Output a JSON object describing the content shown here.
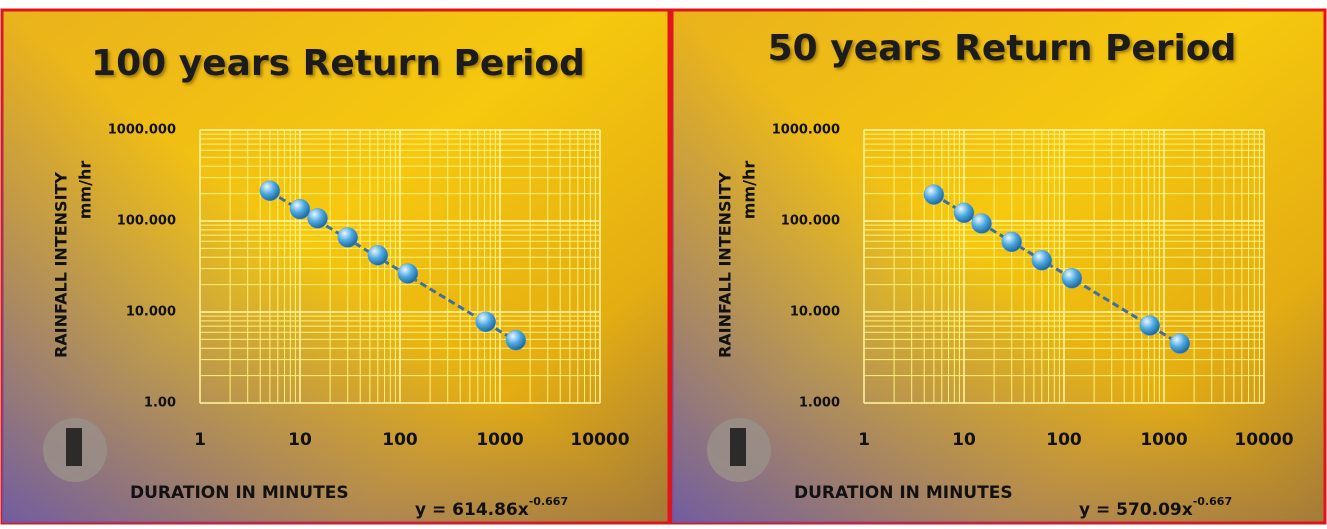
{
  "chart_data": [
    {
      "type": "scatter",
      "title": "100 years Return Period",
      "x_label": "DURATION IN MINUTES",
      "y_label": "RAINFALL INTENSITY",
      "y_label_unit": "mm/hr",
      "x": [
        5,
        10,
        15,
        30,
        60,
        120,
        720,
        1440
      ],
      "values": [
        215,
        135,
        107,
        66,
        42,
        26.5,
        7.8,
        4.9
      ],
      "color": "#4aa8e0",
      "xlim": [
        1,
        10000
      ],
      "ylim": [
        1,
        1000
      ],
      "log_x": true,
      "log_y": true,
      "grid": true,
      "xticks": [
        1,
        10,
        100,
        1000,
        10000
      ],
      "yticks": [
        {
          "value": 1,
          "label": "1.00"
        },
        {
          "value": 10,
          "label": "10.000"
        },
        {
          "value": 100,
          "label": "100.000"
        },
        {
          "value": 1000,
          "label": "1000.000"
        }
      ],
      "trendline": {
        "coefficient": 614.86,
        "exponent": -0.667,
        "label": "y = 614.86x",
        "exponent_label": "-0.667",
        "color": "#3d6fa5"
      }
    },
    {
      "type": "scatter",
      "title": "50 years Return Period",
      "x_label": "DURATION IN MINUTES",
      "y_label": "RAINFALL INTENSITY",
      "y_label_unit": "mm/hr",
      "x": [
        5,
        10,
        15,
        30,
        60,
        120,
        720,
        1440
      ],
      "values": [
        195,
        123,
        94,
        59,
        37,
        23.5,
        7.1,
        4.5
      ],
      "color": "#4aa8e0",
      "xlim": [
        1,
        10000
      ],
      "ylim": [
        1,
        1000
      ],
      "log_x": true,
      "log_y": true,
      "grid": true,
      "xticks": [
        1,
        10,
        100,
        1000,
        10000
      ],
      "yticks": [
        {
          "value": 1,
          "label": "1.000"
        },
        {
          "value": 10,
          "label": "10.000"
        },
        {
          "value": 100,
          "label": "100.000"
        },
        {
          "value": 1000,
          "label": "1000.000"
        }
      ],
      "trendline": {
        "coefficient": 570.09,
        "exponent": -0.667,
        "label": "y = 570.09x",
        "exponent_label": "-0.667",
        "color": "#3d6fa5"
      }
    }
  ]
}
